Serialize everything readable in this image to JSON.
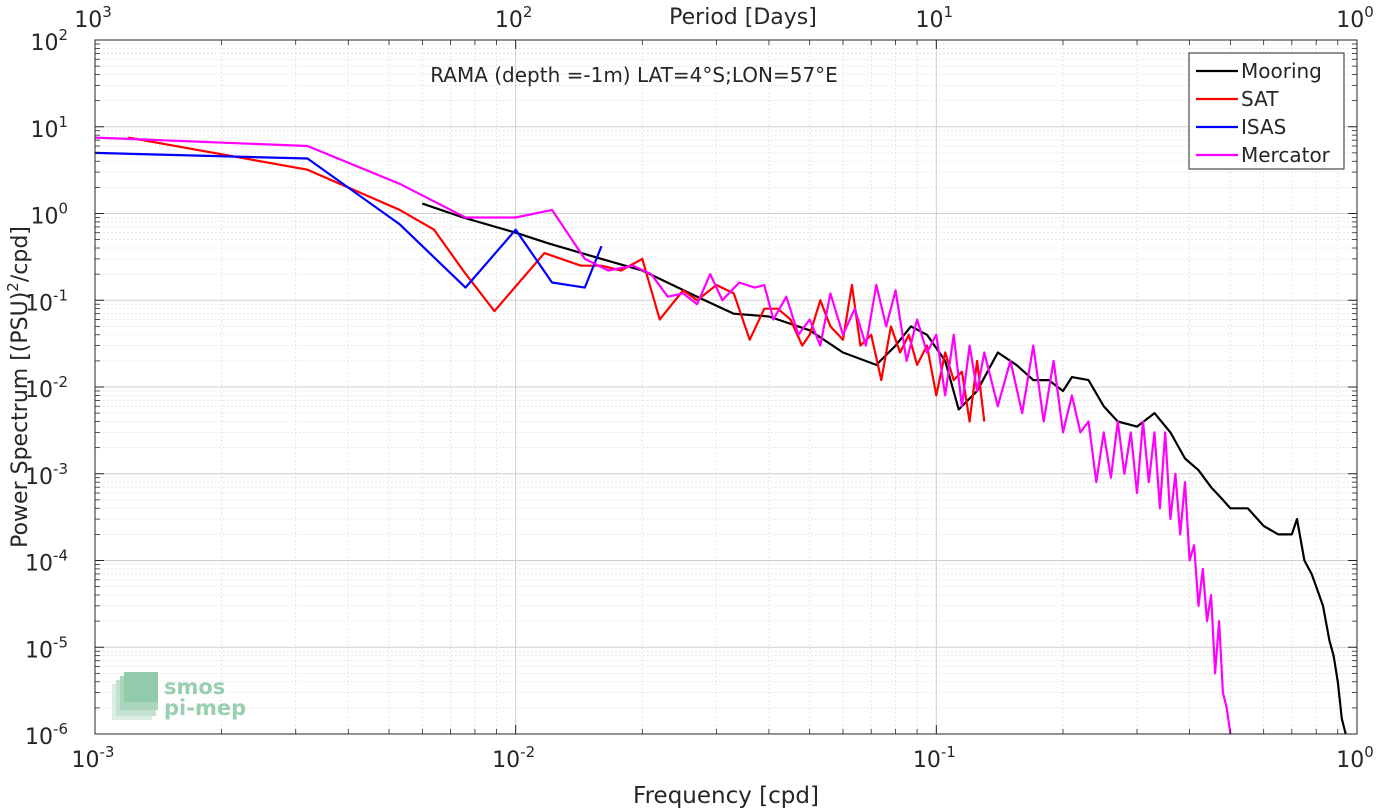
{
  "chart_data": {
    "type": "line",
    "title": "RAMA (depth =-1m) LAT=4°S;LON=57°E",
    "xlabel": "Frequency [cpd]",
    "ylabel_main": "Power Spectrum [(PSU)",
    "ylabel_sup": "2",
    "ylabel_tail": "/cpd]",
    "top_axis_label": "Period [Days]",
    "x_scale": "log",
    "y_scale": "log",
    "xlim": [
      0.001,
      1
    ],
    "ylim": [
      1e-06,
      100
    ],
    "grid": true,
    "legend_position": "top-right",
    "x_ticks": [
      {
        "value": 0.001,
        "base": "10",
        "exp": "-3"
      },
      {
        "value": 0.01,
        "base": "10",
        "exp": "-2"
      },
      {
        "value": 0.1,
        "base": "10",
        "exp": "-1"
      },
      {
        "value": 1,
        "base": "10",
        "exp": "0"
      }
    ],
    "top_ticks": [
      {
        "value": 0.001,
        "base": "10",
        "exp": "3"
      },
      {
        "value": 0.01,
        "base": "10",
        "exp": "2"
      },
      {
        "value": 0.1,
        "base": "10",
        "exp": "1"
      },
      {
        "value": 1,
        "base": "10",
        "exp": "0"
      }
    ],
    "y_ticks": [
      {
        "value": 100,
        "base": "10",
        "exp": "2"
      },
      {
        "value": 10,
        "base": "10",
        "exp": "1"
      },
      {
        "value": 1,
        "base": "10",
        "exp": "0"
      },
      {
        "value": 0.1,
        "base": "10",
        "exp": "-1"
      },
      {
        "value": 0.01,
        "base": "10",
        "exp": "-2"
      },
      {
        "value": 0.001,
        "base": "10",
        "exp": "-3"
      },
      {
        "value": 0.0001,
        "base": "10",
        "exp": "-4"
      },
      {
        "value": 1e-05,
        "base": "10",
        "exp": "-5"
      },
      {
        "value": 1e-06,
        "base": "10",
        "exp": "-6"
      }
    ],
    "series": [
      {
        "name": "Mooring",
        "color": "#000000",
        "x": [
          0.006,
          0.0075,
          0.01,
          0.012,
          0.016,
          0.02,
          0.027,
          0.033,
          0.04,
          0.05,
          0.06,
          0.072,
          0.08,
          0.087,
          0.095,
          0.105,
          0.113,
          0.125,
          0.14,
          0.155,
          0.17,
          0.185,
          0.2,
          0.21,
          0.23,
          0.25,
          0.27,
          0.3,
          0.33,
          0.36,
          0.39,
          0.42,
          0.45,
          0.48,
          0.5,
          0.55,
          0.6,
          0.65,
          0.7,
          0.72,
          0.75,
          0.78,
          0.8,
          0.83,
          0.86,
          0.88,
          0.9,
          0.92,
          0.94
        ],
        "y": [
          1.3,
          0.9,
          0.6,
          0.45,
          0.3,
          0.22,
          0.11,
          0.07,
          0.065,
          0.045,
          0.025,
          0.018,
          0.03,
          0.05,
          0.04,
          0.02,
          0.0055,
          0.009,
          0.025,
          0.018,
          0.012,
          0.012,
          0.009,
          0.013,
          0.012,
          0.006,
          0.004,
          0.0035,
          0.005,
          0.003,
          0.0015,
          0.0011,
          0.0007,
          0.0005,
          0.0004,
          0.0004,
          0.00025,
          0.0002,
          0.0002,
          0.0003,
          0.0001,
          7e-05,
          5e-05,
          3e-05,
          1.2e-05,
          8e-06,
          4e-06,
          1.5e-06,
          1e-06
        ]
      },
      {
        "name": "SAT",
        "color": "#ff0000",
        "x": [
          0.0012,
          0.0032,
          0.0053,
          0.0064,
          0.0075,
          0.0089,
          0.0117,
          0.0143,
          0.016,
          0.0178,
          0.02,
          0.022,
          0.025,
          0.027,
          0.03,
          0.033,
          0.036,
          0.039,
          0.042,
          0.045,
          0.048,
          0.05,
          0.053,
          0.056,
          0.06,
          0.063,
          0.066,
          0.07,
          0.074,
          0.078,
          0.082,
          0.086,
          0.09,
          0.095,
          0.1,
          0.105,
          0.11,
          0.115,
          0.12,
          0.125,
          0.13
        ],
        "y": [
          7.5,
          3.2,
          1.1,
          0.65,
          0.22,
          0.075,
          0.35,
          0.25,
          0.25,
          0.22,
          0.3,
          0.06,
          0.13,
          0.1,
          0.15,
          0.12,
          0.035,
          0.08,
          0.08,
          0.06,
          0.03,
          0.04,
          0.1,
          0.05,
          0.035,
          0.15,
          0.03,
          0.04,
          0.012,
          0.05,
          0.025,
          0.04,
          0.018,
          0.03,
          0.008,
          0.025,
          0.012,
          0.015,
          0.004,
          0.02,
          0.004
        ]
      },
      {
        "name": "ISAS",
        "color": "#0000ff",
        "x": [
          0.001,
          0.0032,
          0.0053,
          0.0076,
          0.01,
          0.0122,
          0.0146,
          0.016
        ],
        "y": [
          5,
          4.3,
          0.75,
          0.14,
          0.65,
          0.16,
          0.14,
          0.42
        ]
      },
      {
        "name": "Mercator",
        "color": "#ff00ff",
        "x": [
          0.001,
          0.0032,
          0.0053,
          0.0076,
          0.01,
          0.0122,
          0.0146,
          0.0166,
          0.019,
          0.021,
          0.023,
          0.025,
          0.027,
          0.029,
          0.031,
          0.034,
          0.037,
          0.039,
          0.041,
          0.044,
          0.047,
          0.05,
          0.053,
          0.056,
          0.06,
          0.064,
          0.068,
          0.072,
          0.076,
          0.08,
          0.085,
          0.09,
          0.095,
          0.1,
          0.105,
          0.11,
          0.115,
          0.12,
          0.125,
          0.13,
          0.14,
          0.15,
          0.16,
          0.17,
          0.18,
          0.19,
          0.2,
          0.21,
          0.22,
          0.23,
          0.24,
          0.25,
          0.26,
          0.27,
          0.28,
          0.29,
          0.3,
          0.31,
          0.32,
          0.33,
          0.34,
          0.35,
          0.36,
          0.37,
          0.38,
          0.39,
          0.4,
          0.41,
          0.42,
          0.43,
          0.44,
          0.45,
          0.46,
          0.47,
          0.48,
          0.49,
          0.5
        ],
        "y": [
          7.5,
          6,
          2.2,
          0.9,
          0.9,
          1.1,
          0.3,
          0.22,
          0.25,
          0.2,
          0.11,
          0.12,
          0.09,
          0.2,
          0.1,
          0.16,
          0.14,
          0.15,
          0.06,
          0.11,
          0.04,
          0.06,
          0.03,
          0.12,
          0.04,
          0.08,
          0.03,
          0.15,
          0.05,
          0.13,
          0.02,
          0.06,
          0.025,
          0.04,
          0.008,
          0.04,
          0.006,
          0.03,
          0.009,
          0.025,
          0.006,
          0.02,
          0.005,
          0.03,
          0.004,
          0.02,
          0.003,
          0.008,
          0.003,
          0.004,
          0.0008,
          0.003,
          0.0009,
          0.004,
          0.001,
          0.003,
          0.0006,
          0.004,
          0.0008,
          0.003,
          0.0004,
          0.003,
          0.0003,
          0.001,
          0.0002,
          0.0008,
          0.0001,
          0.00015,
          3e-05,
          8e-05,
          2e-05,
          4e-05,
          5e-06,
          2e-05,
          3e-06,
          2e-06,
          1e-06
        ]
      }
    ]
  },
  "logo": {
    "line1": "smos",
    "line2": "pi-mep"
  }
}
